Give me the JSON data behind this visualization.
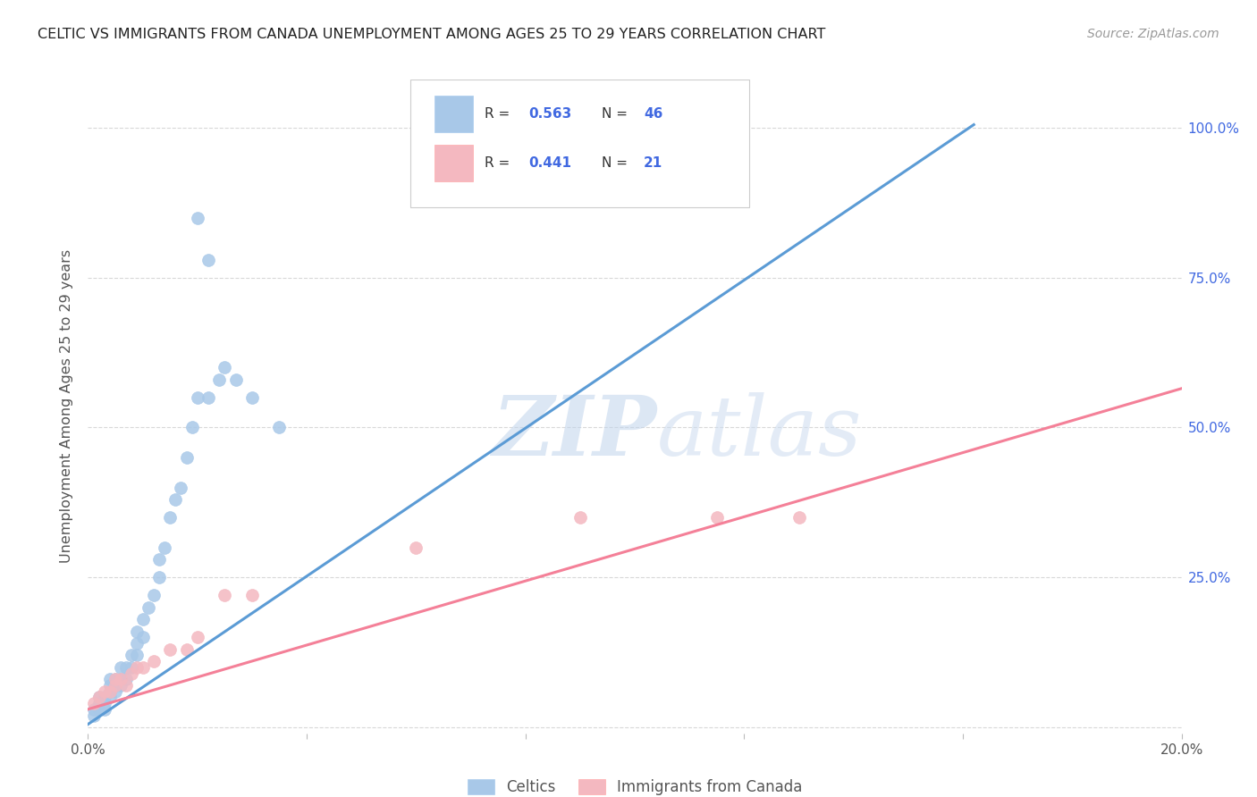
{
  "title": "CELTIC VS IMMIGRANTS FROM CANADA UNEMPLOYMENT AMONG AGES 25 TO 29 YEARS CORRELATION CHART",
  "source": "Source: ZipAtlas.com",
  "ylabel": "Unemployment Among Ages 25 to 29 years",
  "xlim": [
    0.0,
    0.2
  ],
  "ylim": [
    -0.01,
    1.08
  ],
  "xticks": [
    0.0,
    0.04,
    0.08,
    0.12,
    0.16,
    0.2
  ],
  "xticklabels": [
    "0.0%",
    "",
    "",
    "",
    "",
    "20.0%"
  ],
  "yticks": [
    0.0,
    0.25,
    0.5,
    0.75,
    1.0
  ],
  "yticklabels_right": [
    "",
    "25.0%",
    "50.0%",
    "75.0%",
    "100.0%"
  ],
  "blue_color": "#a8c8e8",
  "pink_color": "#f4b8c0",
  "blue_line_color": "#5b9bd5",
  "pink_line_color": "#f48098",
  "label_color": "#4169E1",
  "r_n_color": "#4169E1",
  "watermark_zip": "ZIP",
  "watermark_atlas": "atlas",
  "watermark_color_zip": "#b8cce4",
  "watermark_color_atlas": "#c8daf0",
  "blue_scatter_x": [
    0.001,
    0.001,
    0.002,
    0.002,
    0.002,
    0.003,
    0.003,
    0.003,
    0.004,
    0.004,
    0.004,
    0.004,
    0.005,
    0.005,
    0.005,
    0.006,
    0.006,
    0.006,
    0.007,
    0.007,
    0.008,
    0.008,
    0.009,
    0.009,
    0.009,
    0.01,
    0.01,
    0.011,
    0.012,
    0.013,
    0.013,
    0.014,
    0.015,
    0.016,
    0.017,
    0.018,
    0.019,
    0.02,
    0.022,
    0.024,
    0.025,
    0.027,
    0.03,
    0.035,
    0.02,
    0.022
  ],
  "blue_scatter_y": [
    0.02,
    0.03,
    0.03,
    0.04,
    0.05,
    0.03,
    0.04,
    0.05,
    0.05,
    0.06,
    0.07,
    0.08,
    0.06,
    0.07,
    0.08,
    0.07,
    0.08,
    0.1,
    0.08,
    0.1,
    0.1,
    0.12,
    0.12,
    0.14,
    0.16,
    0.15,
    0.18,
    0.2,
    0.22,
    0.25,
    0.28,
    0.3,
    0.35,
    0.38,
    0.4,
    0.45,
    0.5,
    0.55,
    0.55,
    0.58,
    0.6,
    0.58,
    0.55,
    0.5,
    0.85,
    0.78
  ],
  "pink_scatter_x": [
    0.001,
    0.002,
    0.003,
    0.004,
    0.005,
    0.005,
    0.006,
    0.007,
    0.008,
    0.009,
    0.01,
    0.012,
    0.015,
    0.018,
    0.02,
    0.025,
    0.03,
    0.06,
    0.09,
    0.115,
    0.13
  ],
  "pink_scatter_y": [
    0.04,
    0.05,
    0.06,
    0.06,
    0.07,
    0.08,
    0.08,
    0.07,
    0.09,
    0.1,
    0.1,
    0.11,
    0.13,
    0.13,
    0.15,
    0.22,
    0.22,
    0.3,
    0.35,
    0.35,
    0.35
  ],
  "blue_line_x": [
    0.0,
    0.162
  ],
  "blue_line_y": [
    0.005,
    1.005
  ],
  "pink_line_x": [
    0.0,
    0.2
  ],
  "pink_line_y": [
    0.03,
    0.565
  ],
  "legend_celtics": "Celtics",
  "legend_immigrants": "Immigrants from Canada"
}
